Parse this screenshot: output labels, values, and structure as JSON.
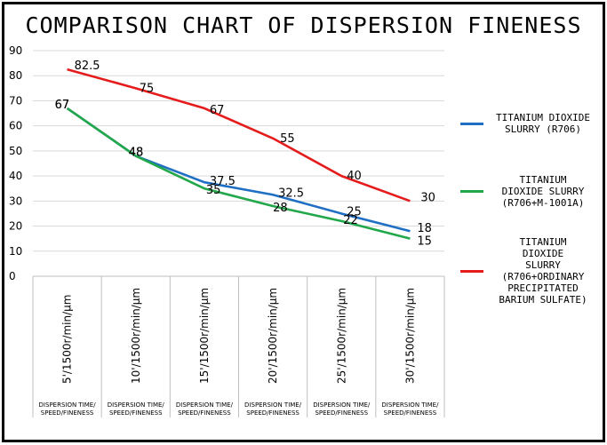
{
  "chart_data": {
    "type": "line",
    "title": "COMPARISON CHART OF DISPERSION FINENESS",
    "categories": [
      "5'/1500r/min/μm",
      "10'/1500r/min/μm",
      "15'/1500r/min/μm",
      "20'/1500r/min/μm",
      "25'/1500r/min/μm",
      "30'/1500r/min/μm"
    ],
    "category_sublabel": "DISPERSION TIME/\nSPEED/FINENESS",
    "ylim": [
      0,
      90
    ],
    "yticks": [
      0,
      10,
      20,
      30,
      40,
      50,
      60,
      70,
      80,
      90
    ],
    "grid": true,
    "legend_position": "right",
    "series": [
      {
        "name": "TITANIUM DIOXIDE\nSLURRY (R706)",
        "color": "#1f6fc4",
        "values": [
          67,
          48,
          37.5,
          32.5,
          25,
          18
        ],
        "labels": [
          "67",
          "48",
          "37.5",
          "32.5",
          "25",
          "18"
        ]
      },
      {
        "name": "TITANIUM\nDIOXIDE SLURRY\n(R706+M-1001A)",
        "color": "#22a84a",
        "values": [
          67,
          48,
          35,
          28,
          22,
          15
        ],
        "labels": [
          "67",
          "48",
          "35",
          "28",
          "22",
          "15"
        ]
      },
      {
        "name": "TITANIUM\nDIOXIDE\nSLURRY\n(R706+ORDINARY\nPRECIPITATED\nBARIUM SULFATE)",
        "color": "#e51c1c",
        "values": [
          82.5,
          75,
          67,
          55,
          40,
          30
        ],
        "labels": [
          "82.5",
          "75",
          "67",
          "55",
          "40",
          "30"
        ]
      }
    ]
  }
}
